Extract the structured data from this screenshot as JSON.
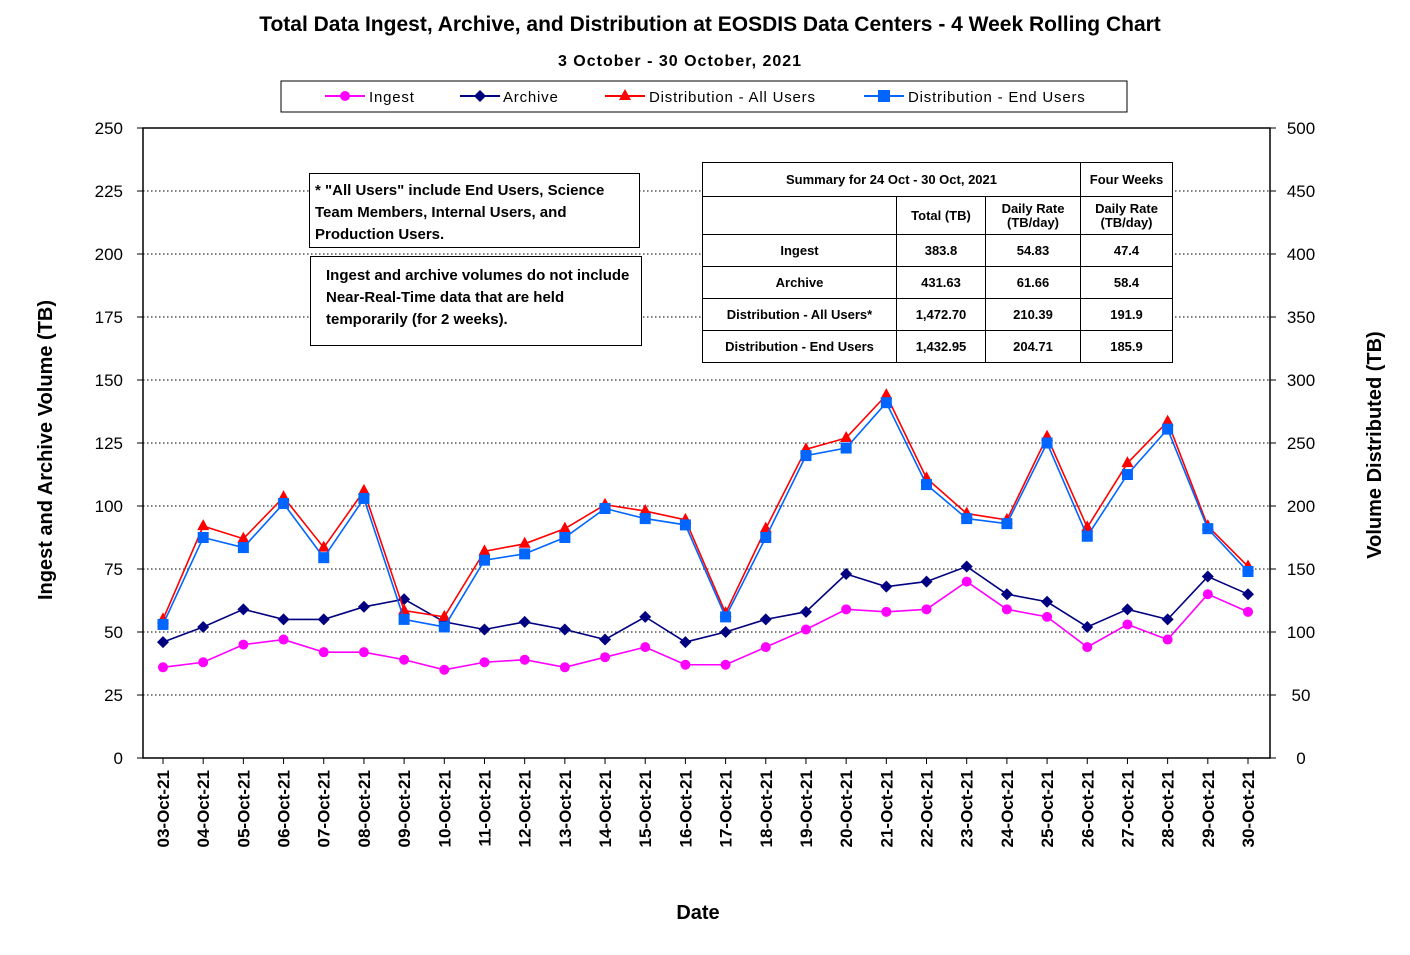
{
  "chart_data": {
    "type": "line",
    "title": "Total Data Ingest, Archive, and  Distribution at EOSDIS Data Centers - 4 Week Rolling Chart",
    "subtitle": "3  October   -  30  October,  2021",
    "xlabel": "Date",
    "ylabel_left": "Ingest and Archive Volume (TB)",
    "ylabel_right": "Volume Distributed (TB)",
    "ylim_left": [
      0,
      250
    ],
    "ylim_right": [
      0,
      500
    ],
    "yticks_left": [
      "0",
      "25",
      "50",
      "75",
      "100",
      "125",
      "150",
      "175",
      "200",
      "225",
      "250"
    ],
    "yticks_right": [
      "0",
      "50",
      "100",
      "150",
      "200",
      "250",
      "300",
      "350",
      "400",
      "450",
      "500"
    ],
    "grid": "horizontal dotted",
    "legend_position": "top",
    "categories": [
      "03-Oct-21",
      "04-Oct-21",
      "05-Oct-21",
      "06-Oct-21",
      "07-Oct-21",
      "08-Oct-21",
      "09-Oct-21",
      "10-Oct-21",
      "11-Oct-21",
      "12-Oct-21",
      "13-Oct-21",
      "14-Oct-21",
      "15-Oct-21",
      "16-Oct-21",
      "17-Oct-21",
      "18-Oct-21",
      "19-Oct-21",
      "20-Oct-21",
      "21-Oct-21",
      "22-Oct-21",
      "23-Oct-21",
      "24-Oct-21",
      "25-Oct-21",
      "26-Oct-21",
      "27-Oct-21",
      "28-Oct-21",
      "29-Oct-21",
      "30-Oct-21"
    ],
    "series": [
      {
        "name": "Ingest",
        "axis": "left",
        "color": "#ff00ff",
        "marker": "circle",
        "values": [
          36,
          38,
          45,
          47,
          42,
          42,
          39,
          35,
          38,
          39,
          36,
          40,
          44,
          37,
          37,
          44,
          51,
          59,
          58,
          59,
          70,
          59,
          56,
          44,
          53,
          47,
          65,
          58
        ]
      },
      {
        "name": "Archive",
        "axis": "left",
        "color": "#000080",
        "marker": "diamond",
        "values": [
          46,
          52,
          59,
          55,
          55,
          60,
          63,
          54,
          51,
          54,
          51,
          47,
          56,
          46,
          50,
          55,
          58,
          73,
          68,
          70,
          76,
          65,
          62,
          52,
          59,
          55,
          72,
          65
        ]
      },
      {
        "name": "Distribution - All Users",
        "axis": "right",
        "color": "#ff0000",
        "marker": "triangle",
        "values": [
          110,
          184,
          174,
          207,
          167,
          212,
          117,
          112,
          164,
          170,
          182,
          201,
          196,
          189,
          115,
          182,
          245,
          254,
          288,
          222,
          194,
          189,
          255,
          183,
          234,
          267,
          184,
          152
        ]
      },
      {
        "name": "Distribution - End Users",
        "axis": "right",
        "color": "#0066ff",
        "marker": "square",
        "values": [
          106,
          175,
          167,
          202,
          159,
          206,
          110,
          104,
          157,
          162,
          175,
          198,
          190,
          185,
          112,
          175,
          240,
          246,
          282,
          217,
          190,
          186,
          250,
          176,
          225,
          261,
          182,
          148
        ]
      }
    ],
    "annotations": [
      "* \"All Users\" include End Users, Science Team Members,  Internal Users, and Production Users.",
      "Ingest and archive volumes do not include Near-Real-Time data that are held temporarily (for 2 weeks)."
    ]
  },
  "notes": {
    "all_users": "* \"All Users\" include End Users, Science Team Members,  Internal Users, and Production Users.",
    "nrt": "Ingest and archive volumes do not include Near-Real-Time data that are held temporarily (for 2 weeks)."
  },
  "summary": {
    "header": "Summary  for  24  Oct   -  30  Oct,  2021",
    "four_weeks": "Four Weeks",
    "col_total": "Total (TB)",
    "col_daily": "Daily Rate (TB/day)",
    "col_daily4": "Daily Rate (TB/day)",
    "rows": [
      {
        "label": "Ingest",
        "total": "383.8",
        "daily": "54.83",
        "daily4": "47.4"
      },
      {
        "label": "Archive",
        "total": "431.63",
        "daily": "61.66",
        "daily4": "58.4"
      },
      {
        "label": "Distribution - All Users*",
        "total": "1,472.70",
        "daily": "210.39",
        "daily4": "191.9"
      },
      {
        "label": "Distribution - End Users",
        "total": "1,432.95",
        "daily": "204.71",
        "daily4": "185.9"
      }
    ]
  }
}
